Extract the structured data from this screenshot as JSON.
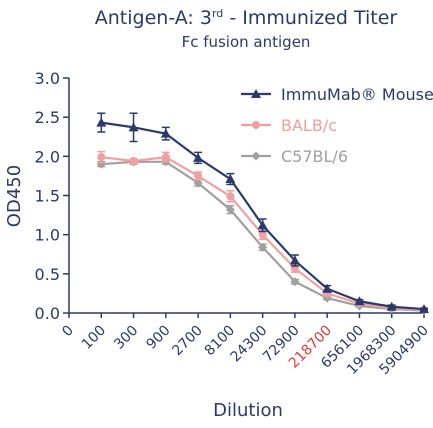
{
  "chart_data": {
    "type": "line",
    "title": [
      "Antigen-A: 3",
      "rd",
      " - Immunized Titer"
    ],
    "subtitle": "Fc fusion antigen",
    "x_label": "Dilution",
    "y_label": "OD450",
    "categories": [
      "0",
      "100",
      "300",
      "900",
      "2700",
      "8100",
      "24300",
      "72900",
      "218700",
      "656100",
      "1968300",
      "5904900"
    ],
    "highlight": {
      "index": 8,
      "color": "#e03a3a"
    },
    "ylim": [
      0,
      3
    ],
    "yticks": [
      {
        "value": 0,
        "label": "0.0"
      },
      0.5,
      {
        "value": 1,
        "label": "1.0"
      },
      1.5,
      {
        "value": 2,
        "label": "2.0"
      },
      2.5,
      {
        "value": 3,
        "label": "3.0"
      }
    ],
    "series": [
      {
        "name": "ImmuMab® Mouse",
        "color": "#2b3a6b",
        "marker": "triangle",
        "values": [
          null,
          2.43,
          2.37,
          2.29,
          1.98,
          1.71,
          1.12,
          0.67,
          0.31,
          0.15,
          0.08,
          0.05
        ],
        "errors": [
          null,
          0.12,
          0.18,
          0.08,
          0.07,
          0.07,
          0.08,
          0.07,
          0.04,
          0.02,
          0.02,
          0.01
        ]
      },
      {
        "name": "BALB/c",
        "color": "#f0a0a0",
        "marker": "circle",
        "values": [
          null,
          1.99,
          1.94,
          1.99,
          1.75,
          1.49,
          1.0,
          0.57,
          0.25,
          0.12,
          0.06,
          0.04
        ],
        "errors": [
          null,
          0.07,
          0.03,
          0.06,
          0.05,
          0.07,
          0.06,
          0.05,
          0.03,
          0.02,
          0.01,
          0.01
        ]
      },
      {
        "name": "C57BL/6",
        "color": "#a0a0a0",
        "marker": "diamond",
        "values": [
          null,
          1.9,
          1.93,
          1.93,
          1.66,
          1.32,
          0.84,
          0.4,
          0.19,
          0.09,
          0.05,
          0.03
        ],
        "errors": [
          null,
          0.03,
          0.03,
          0.03,
          0.04,
          0.05,
          0.04,
          0.03,
          0.02,
          0.01,
          0.01,
          0.01
        ]
      }
    ]
  }
}
